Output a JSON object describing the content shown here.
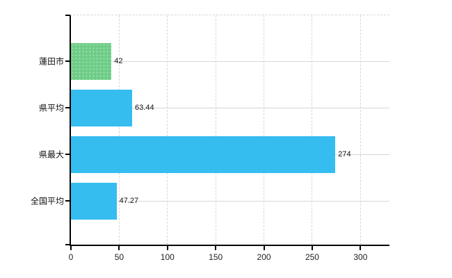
{
  "chart_data": {
    "type": "bar",
    "orientation": "horizontal",
    "title": "",
    "xlabel": "",
    "ylabel": "",
    "categories": [
      "蓮田市",
      "県平均",
      "県最大",
      "全国平均"
    ],
    "values": [
      42,
      63.44,
      274,
      47.27
    ],
    "value_labels": [
      "42",
      "63.44",
      "274",
      "47.27"
    ],
    "bar_colors": [
      "#6ECD87",
      "#35BDF0",
      "#35BDF0",
      "#35BDF0"
    ],
    "highlight_category": "蓮田市",
    "x_ticks": [
      0,
      50,
      100,
      150,
      200,
      250,
      300
    ],
    "x_tick_labels": [
      "0",
      "50",
      "100",
      "150",
      "200",
      "250",
      "300"
    ],
    "xlim": [
      0,
      330
    ],
    "grid": {
      "vertical": "dashed",
      "horizontal": "solid",
      "top_border": "dashed",
      "gridline_color": "#d6d6d6"
    },
    "legend": "none",
    "axis_color": "#000000",
    "text_color": "#111111"
  }
}
